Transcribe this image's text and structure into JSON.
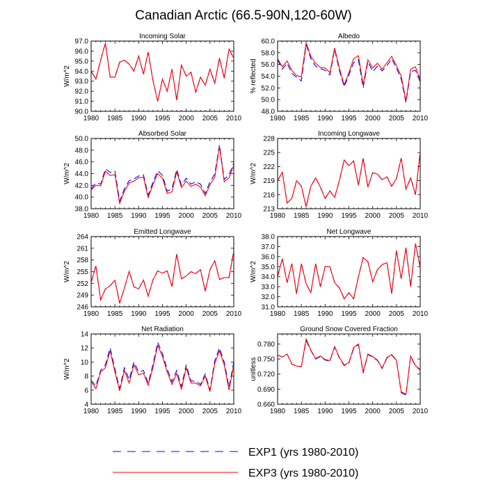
{
  "figure_title": "Canadian Arctic (66.5-90N,120-60W)",
  "colors": {
    "exp1": "#0000ff",
    "exp3": "#ff0000",
    "axis": "#000000"
  },
  "legend": [
    {
      "label": "EXP1 (yrs 1980-2010)",
      "color": "#0000ff",
      "dash": true
    },
    {
      "label": "EXP3 (yrs 1980-2010)",
      "color": "#ff0000",
      "dash": false
    }
  ],
  "chart_data": [
    {
      "type": "line",
      "title": "Incoming Solar",
      "ylabel": "W/m^2",
      "xlabel": "",
      "xlim": [
        1980,
        2010
      ],
      "xticks": [
        1980,
        1985,
        1990,
        1995,
        2000,
        2005,
        2010
      ],
      "ylim": [
        90,
        97
      ],
      "yticks": [
        "90.0",
        "91.0",
        "92.0",
        "93.0",
        "94.0",
        "95.0",
        "96.0",
        "97.0"
      ],
      "x": [
        1980,
        1981,
        1982,
        1983,
        1984,
        1985,
        1986,
        1987,
        1988,
        1989,
        1990,
        1991,
        1992,
        1993,
        1994,
        1995,
        1996,
        1997,
        1998,
        1999,
        2000,
        2001,
        2002,
        2003,
        2004,
        2005,
        2006,
        2007,
        2008,
        2009,
        2010
      ],
      "series": [
        {
          "name": "EXP1 (yrs 1980-2010)",
          "values": [
            94.0,
            93.2,
            95.1,
            96.8,
            93.4,
            93.4,
            94.9,
            95.1,
            94.7,
            94.0,
            95.5,
            93.7,
            95.9,
            93.1,
            91.0,
            93.2,
            92.0,
            94.2,
            91.1,
            94.6,
            93.5,
            93.9,
            91.9,
            93.4,
            92.6,
            94.2,
            92.8,
            95.3,
            93.3,
            96.2,
            95.3
          ]
        },
        {
          "name": "EXP3 (yrs 1980-2010)",
          "values": [
            94.0,
            93.2,
            95.1,
            96.8,
            93.4,
            93.4,
            94.9,
            95.1,
            94.7,
            94.0,
            95.5,
            93.7,
            95.9,
            93.1,
            91.0,
            93.2,
            92.0,
            94.2,
            91.1,
            94.6,
            93.5,
            93.9,
            91.9,
            93.4,
            92.6,
            94.2,
            92.8,
            95.3,
            93.3,
            96.2,
            95.3
          ]
        }
      ]
    },
    {
      "type": "line",
      "title": "Albedo",
      "ylabel": "% reflected",
      "xlabel": "",
      "xlim": [
        1980,
        2010
      ],
      "xticks": [
        1980,
        1985,
        1990,
        1995,
        2000,
        2005,
        2010
      ],
      "ylim": [
        48,
        60
      ],
      "yticks": [
        "48.0",
        "50.0",
        "52.0",
        "54.0",
        "56.0",
        "58.0",
        "60.0"
      ],
      "x": [
        1980,
        1981,
        1982,
        1983,
        1984,
        1985,
        1986,
        1987,
        1988,
        1989,
        1990,
        1991,
        1992,
        1993,
        1994,
        1995,
        1996,
        1997,
        1998,
        1999,
        2000,
        2001,
        2002,
        2003,
        2004,
        2005,
        2006,
        2007,
        2008,
        2009,
        2010
      ],
      "series": [
        {
          "name": "EXP1 (yrs 1980-2010)",
          "values": [
            56.8,
            55.2,
            56.2,
            54.5,
            53.8,
            53.2,
            59.4,
            57.0,
            55.7,
            55.3,
            55.0,
            54.2,
            58.6,
            55.0,
            52.2,
            54.2,
            56.3,
            56.8,
            52.0,
            56.5,
            54.8,
            55.7,
            54.9,
            55.8,
            57.0,
            55.4,
            53.5,
            49.5,
            54.8,
            55.0,
            53.0
          ]
        },
        {
          "name": "EXP3 (yrs 1980-2010)",
          "values": [
            57.0,
            55.6,
            56.6,
            55.0,
            54.1,
            53.9,
            59.7,
            57.4,
            56.2,
            55.5,
            55.4,
            54.6,
            58.8,
            55.4,
            52.5,
            54.6,
            57.0,
            57.5,
            52.5,
            56.8,
            55.4,
            56.2,
            55.2,
            56.3,
            57.4,
            55.8,
            54.0,
            49.8,
            55.2,
            55.6,
            53.3
          ]
        }
      ]
    },
    {
      "type": "line",
      "title": "Absorbed Solar",
      "ylabel": "W/m^2",
      "xlabel": "",
      "xlim": [
        1980,
        2010
      ],
      "xticks": [
        1980,
        1985,
        1990,
        1995,
        2000,
        2005,
        2010
      ],
      "ylim": [
        38,
        50
      ],
      "yticks": [
        "38.0",
        "40.0",
        "42.0",
        "44.0",
        "46.0",
        "48.0",
        "50.0"
      ],
      "x": [
        1980,
        1981,
        1982,
        1983,
        1984,
        1985,
        1986,
        1987,
        1988,
        1989,
        1990,
        1991,
        1992,
        1993,
        1994,
        1995,
        1996,
        1997,
        1998,
        1999,
        2000,
        2001,
        2002,
        2003,
        2004,
        2005,
        2006,
        2007,
        2008,
        2009,
        2010
      ],
      "series": [
        {
          "name": "EXP1 (yrs 1980-2010)",
          "values": [
            41.4,
            42.4,
            42.2,
            44.8,
            44.2,
            44.4,
            39.3,
            41.4,
            42.8,
            43.1,
            43.6,
            43.8,
            40.3,
            42.5,
            44.5,
            43.7,
            41.0,
            41.4,
            44.7,
            42.0,
            43.2,
            42.2,
            42.6,
            42.2,
            40.6,
            42.6,
            43.9,
            48.9,
            43.0,
            43.8,
            45.8
          ]
        },
        {
          "name": "EXP3 (yrs 1980-2010)",
          "values": [
            41.2,
            42.0,
            41.9,
            44.4,
            43.7,
            43.8,
            38.9,
            41.0,
            42.4,
            42.7,
            43.3,
            43.4,
            39.9,
            42.1,
            44.0,
            43.2,
            40.6,
            40.9,
            44.3,
            41.6,
            42.7,
            41.8,
            42.2,
            41.7,
            40.2,
            42.1,
            43.4,
            48.6,
            42.6,
            43.3,
            45.4
          ]
        }
      ]
    },
    {
      "type": "line",
      "title": "Incoming Longwave",
      "ylabel": "W/m^2",
      "xlabel": "",
      "xlim": [
        1980,
        2010
      ],
      "xticks": [
        1980,
        1985,
        1990,
        1995,
        2000,
        2005,
        2010
      ],
      "ylim": [
        213,
        228
      ],
      "yticks": [
        "213",
        "216",
        "219",
        "222",
        "225",
        "228"
      ],
      "x": [
        1980,
        1981,
        1982,
        1983,
        1984,
        1985,
        1986,
        1987,
        1988,
        1989,
        1990,
        1991,
        1992,
        1993,
        1994,
        1995,
        1996,
        1997,
        1998,
        1999,
        2000,
        2001,
        2002,
        2003,
        2004,
        2005,
        2006,
        2007,
        2008,
        2009,
        2010
      ],
      "series": [
        {
          "name": "EXP1 (yrs 1980-2010)",
          "values": [
            219.0,
            220.8,
            214.2,
            215.2,
            219.0,
            217.8,
            213.4,
            217.8,
            219.6,
            217.6,
            215.2,
            216.8,
            215.4,
            219.0,
            223.4,
            222.2,
            223.2,
            218.0,
            223.8,
            217.6,
            220.7,
            220.4,
            219.2,
            219.8,
            217.8,
            219.4,
            223.8,
            217.2,
            219.6,
            216.0,
            225.2
          ]
        },
        {
          "name": "EXP3 (yrs 1980-2010)",
          "values": [
            219.0,
            220.8,
            214.2,
            215.2,
            219.0,
            217.8,
            213.4,
            217.8,
            219.6,
            217.6,
            215.2,
            216.8,
            215.4,
            219.0,
            223.4,
            222.2,
            223.2,
            218.0,
            223.8,
            217.6,
            220.7,
            220.4,
            219.2,
            219.8,
            217.8,
            219.4,
            223.8,
            217.2,
            219.6,
            216.0,
            225.2
          ]
        }
      ]
    },
    {
      "type": "line",
      "title": "Emitted Longwave",
      "ylabel": "W/m^2",
      "xlabel": "",
      "xlim": [
        1980,
        2010
      ],
      "xticks": [
        1980,
        1985,
        1990,
        1995,
        2000,
        2005,
        2010
      ],
      "ylim": [
        246,
        264
      ],
      "yticks": [
        "246",
        "249",
        "252",
        "255",
        "258",
        "261",
        "264"
      ],
      "x": [
        1980,
        1981,
        1982,
        1983,
        1984,
        1985,
        1986,
        1987,
        1988,
        1989,
        1990,
        1991,
        1992,
        1993,
        1994,
        1995,
        1996,
        1997,
        1998,
        1999,
        2000,
        2001,
        2002,
        2003,
        2004,
        2005,
        2006,
        2007,
        2008,
        2009,
        2010
      ],
      "series": [
        {
          "name": "EXP1 (yrs 1980-2010)",
          "values": [
            252.2,
            256.5,
            247.8,
            250.6,
            251.4,
            252.8,
            246.9,
            250.8,
            255.1,
            251.1,
            250.6,
            252.9,
            248.7,
            252.9,
            255.2,
            254.6,
            255.2,
            251.2,
            259.5,
            253.2,
            253.9,
            255.0,
            254.5,
            255.5,
            250.0,
            255.5,
            257.8,
            253.0,
            253.5,
            253.5,
            260.2
          ]
        },
        {
          "name": "EXP3 (yrs 1980-2010)",
          "values": [
            252.2,
            256.5,
            247.8,
            250.6,
            251.4,
            252.8,
            246.9,
            250.8,
            255.1,
            251.1,
            250.6,
            252.9,
            248.7,
            252.9,
            255.2,
            254.6,
            255.2,
            251.2,
            259.5,
            253.2,
            253.9,
            255.0,
            254.5,
            255.5,
            250.0,
            255.5,
            257.8,
            253.0,
            253.5,
            253.5,
            260.2
          ]
        }
      ]
    },
    {
      "type": "line",
      "title": "Net Longwave",
      "ylabel": "W/m^2",
      "xlabel": "",
      "xlim": [
        1980,
        2010
      ],
      "xticks": [
        1980,
        1985,
        1990,
        1995,
        2000,
        2005,
        2010
      ],
      "ylim": [
        31,
        38
      ],
      "yticks": [
        "31.0",
        "32.0",
        "33.0",
        "34.0",
        "35.0",
        "36.0",
        "37.0",
        "38.0"
      ],
      "x": [
        1980,
        1981,
        1982,
        1983,
        1984,
        1985,
        1986,
        1987,
        1988,
        1989,
        1990,
        1991,
        1992,
        1993,
        1994,
        1995,
        1996,
        1997,
        1998,
        1999,
        2000,
        2001,
        2002,
        2003,
        2004,
        2005,
        2006,
        2007,
        2008,
        2009,
        2010
      ],
      "series": [
        {
          "name": "EXP1 (yrs 1980-2010)",
          "values": [
            34.0,
            35.8,
            33.4,
            35.3,
            32.3,
            35.3,
            33.3,
            32.4,
            35.3,
            33.0,
            35.0,
            35.0,
            33.4,
            32.9,
            31.8,
            32.4,
            31.8,
            34.0,
            35.9,
            35.5,
            33.5,
            34.7,
            35.2,
            35.4,
            32.3,
            36.6,
            33.8,
            36.9,
            33.0,
            37.3,
            34.9
          ]
        },
        {
          "name": "EXP3 (yrs 1980-2010)",
          "values": [
            34.0,
            35.8,
            33.4,
            35.3,
            32.3,
            35.3,
            33.3,
            32.4,
            35.3,
            33.0,
            35.0,
            35.0,
            33.4,
            32.9,
            31.8,
            32.4,
            31.8,
            34.0,
            35.9,
            35.5,
            33.5,
            34.7,
            35.2,
            35.4,
            32.3,
            36.6,
            33.8,
            36.9,
            33.0,
            37.3,
            34.9
          ]
        }
      ]
    },
    {
      "type": "line",
      "title": "Net Radiation",
      "ylabel": "W/m^2",
      "xlabel": "",
      "xlim": [
        1980,
        2010
      ],
      "xticks": [
        1980,
        1985,
        1990,
        1995,
        2000,
        2005,
        2010
      ],
      "ylim": [
        4,
        14
      ],
      "yticks": [
        "4",
        "6",
        "8",
        "10",
        "12",
        "14"
      ],
      "x": [
        1980,
        1981,
        1982,
        1983,
        1984,
        1985,
        1986,
        1987,
        1988,
        1989,
        1990,
        1991,
        1992,
        1993,
        1994,
        1995,
        1996,
        1997,
        1998,
        1999,
        2000,
        2001,
        2002,
        2003,
        2004,
        2005,
        2006,
        2007,
        2008,
        2009,
        2010
      ],
      "series": [
        {
          "name": "EXP1 (yrs 1980-2010)",
          "values": [
            7.4,
            6.6,
            8.8,
            9.6,
            12.0,
            9.0,
            6.2,
            9.2,
            7.5,
            10.0,
            8.6,
            8.8,
            7.0,
            9.6,
            12.8,
            11.2,
            9.0,
            7.2,
            8.8,
            6.5,
            9.6,
            7.3,
            7.3,
            6.8,
            8.3,
            6.0,
            10.2,
            12.0,
            10.0,
            6.4,
            10.0
          ]
        },
        {
          "name": "EXP3 (yrs 1980-2010)",
          "values": [
            7.2,
            6.2,
            8.6,
            9.2,
            11.6,
            8.6,
            5.9,
            8.8,
            7.0,
            9.6,
            8.2,
            8.4,
            6.7,
            9.2,
            12.4,
            10.8,
            8.6,
            6.8,
            8.4,
            6.1,
            9.2,
            7.0,
            7.0,
            6.6,
            8.0,
            5.8,
            9.8,
            11.6,
            9.6,
            6.0,
            9.6
          ]
        }
      ]
    },
    {
      "type": "line",
      "title": "Ground Snow Covered Fraction",
      "ylabel": "unitless",
      "xlabel": "",
      "xlim": [
        1980,
        2010
      ],
      "xticks": [
        1980,
        1985,
        1990,
        1995,
        2000,
        2005,
        2010
      ],
      "ylim": [
        0.66,
        0.8
      ],
      "yticks": [
        "0.660",
        "0.690",
        "0.720",
        "0.750",
        "0.780"
      ],
      "x": [
        1980,
        1981,
        1982,
        1983,
        1984,
        1985,
        1986,
        1987,
        1988,
        1989,
        1990,
        1991,
        1992,
        1993,
        1994,
        1995,
        1996,
        1997,
        1998,
        1999,
        2000,
        2001,
        2002,
        2003,
        2004,
        2005,
        2006,
        2007,
        2008,
        2009,
        2010
      ],
      "series": [
        {
          "name": "EXP1 (yrs 1980-2010)",
          "values": [
            0.758,
            0.754,
            0.76,
            0.74,
            0.736,
            0.735,
            0.787,
            0.767,
            0.75,
            0.755,
            0.748,
            0.746,
            0.774,
            0.752,
            0.737,
            0.742,
            0.771,
            0.779,
            0.722,
            0.759,
            0.754,
            0.747,
            0.731,
            0.752,
            0.758,
            0.747,
            0.683,
            0.678,
            0.755,
            0.736,
            0.728
          ]
        },
        {
          "name": "EXP3 (yrs 1980-2010)",
          "values": [
            0.758,
            0.754,
            0.76,
            0.74,
            0.736,
            0.735,
            0.79,
            0.768,
            0.751,
            0.756,
            0.749,
            0.747,
            0.775,
            0.753,
            0.738,
            0.743,
            0.773,
            0.78,
            0.724,
            0.76,
            0.755,
            0.748,
            0.732,
            0.753,
            0.759,
            0.748,
            0.685,
            0.68,
            0.756,
            0.737,
            0.729
          ]
        }
      ]
    }
  ]
}
